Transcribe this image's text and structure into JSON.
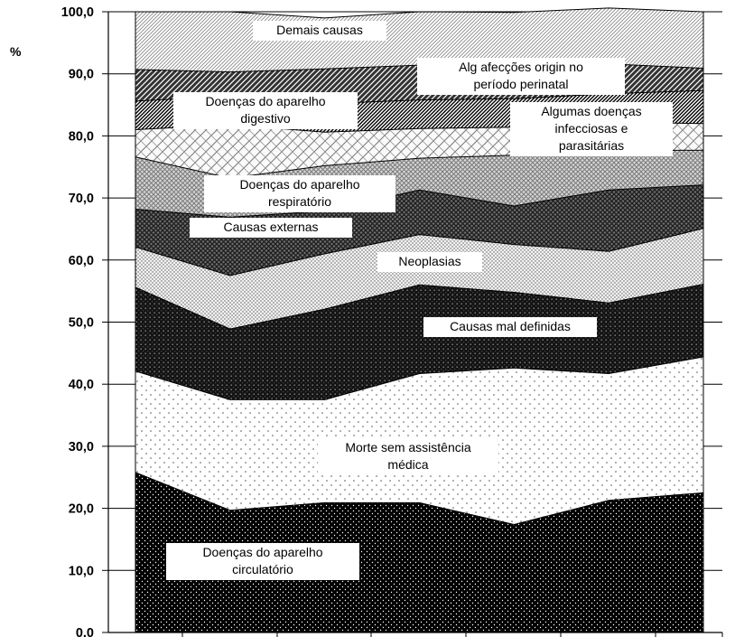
{
  "chart_data": {
    "type": "area",
    "stacked": true,
    "percent_stacked": true,
    "ylabel": "%",
    "ylim": [
      0,
      100
    ],
    "ytick_step": 10,
    "yticks": [
      "0,0",
      "10,0",
      "20,0",
      "30,0",
      "40,0",
      "50,0",
      "60,0",
      "70,0",
      "80,0",
      "90,0",
      "100,0"
    ],
    "x_count": 7,
    "xtick_labels": [],
    "grid": "horizontal",
    "legend": "none (inline labels)",
    "series": [
      {
        "name": "Doenças do aparelho circulatório",
        "values": [
          25.8,
          19.7,
          20.9,
          20.9,
          17.4,
          21.3,
          22.5
        ],
        "label_lines": [
          "Doenças do aparelho",
          "circulatório"
        ],
        "pattern": "dense-dots-black"
      },
      {
        "name": "Morte sem assistência médica",
        "values": [
          16.3,
          17.8,
          16.6,
          20.8,
          25.2,
          20.4,
          21.9
        ],
        "label_lines": [
          "Morte sem assistência",
          "médica"
        ],
        "pattern": "sparse-dots-white"
      },
      {
        "name": "Causas mal definidas",
        "values": [
          13.5,
          11.4,
          14.6,
          14.3,
          12.2,
          11.4,
          11.7
        ],
        "label_lines": [
          "Causas mal definidas"
        ],
        "pattern": "dots-dark"
      },
      {
        "name": "Neoplasias",
        "values": [
          6.5,
          8.6,
          8.9,
          8.1,
          7.7,
          8.3,
          9.0
        ],
        "label_lines": [
          "Neoplasias"
        ],
        "pattern": "fine-dots-light"
      },
      {
        "name": "Causas externas",
        "values": [
          6.1,
          9.4,
          6.9,
          7.2,
          6.2,
          9.9,
          7.0
        ],
        "label_lines": [
          "Causas externas"
        ],
        "pattern": "crosshatch-dark"
      },
      {
        "name": "Doenças do aparelho respiratório",
        "values": [
          8.4,
          6.3,
          7.3,
          5.1,
          8.2,
          6.3,
          5.6
        ],
        "label_lines": [
          "Doenças do aparelho",
          "respiratório"
        ],
        "pattern": "crosshatch-light"
      },
      {
        "name": "Algumas doenças infecciosas e parasitárias",
        "values": [
          4.4,
          8.6,
          5.4,
          4.8,
          4.5,
          4.6,
          4.3
        ],
        "label_lines": [
          "Algumas doenças",
          "infecciosas e",
          "parasitárias"
        ],
        "pattern": "wide-hatch-light"
      },
      {
        "name": "Doenças do aparelho digestivo",
        "values": [
          4.6,
          4.6,
          4.6,
          4.6,
          4.6,
          4.6,
          5.3
        ],
        "label_lines": [
          "Doenças do aparelho",
          "digestivo"
        ],
        "pattern": "diagonal-dense"
      },
      {
        "name": "Alg afecções origin no período perinatal",
        "values": [
          5.1,
          3.9,
          5.6,
          5.6,
          4.1,
          4.8,
          3.6
        ],
        "label_lines": [
          "Alg afecções origin no",
          "período perinatal"
        ],
        "pattern": "diagonal-dark"
      },
      {
        "name": "Demais causas",
        "values": [
          9.3,
          9.7,
          8.2,
          8.6,
          9.8,
          9.0,
          9.1
        ],
        "label_lines": [
          "Demais causas"
        ],
        "pattern": "diagonal-light"
      }
    ]
  }
}
